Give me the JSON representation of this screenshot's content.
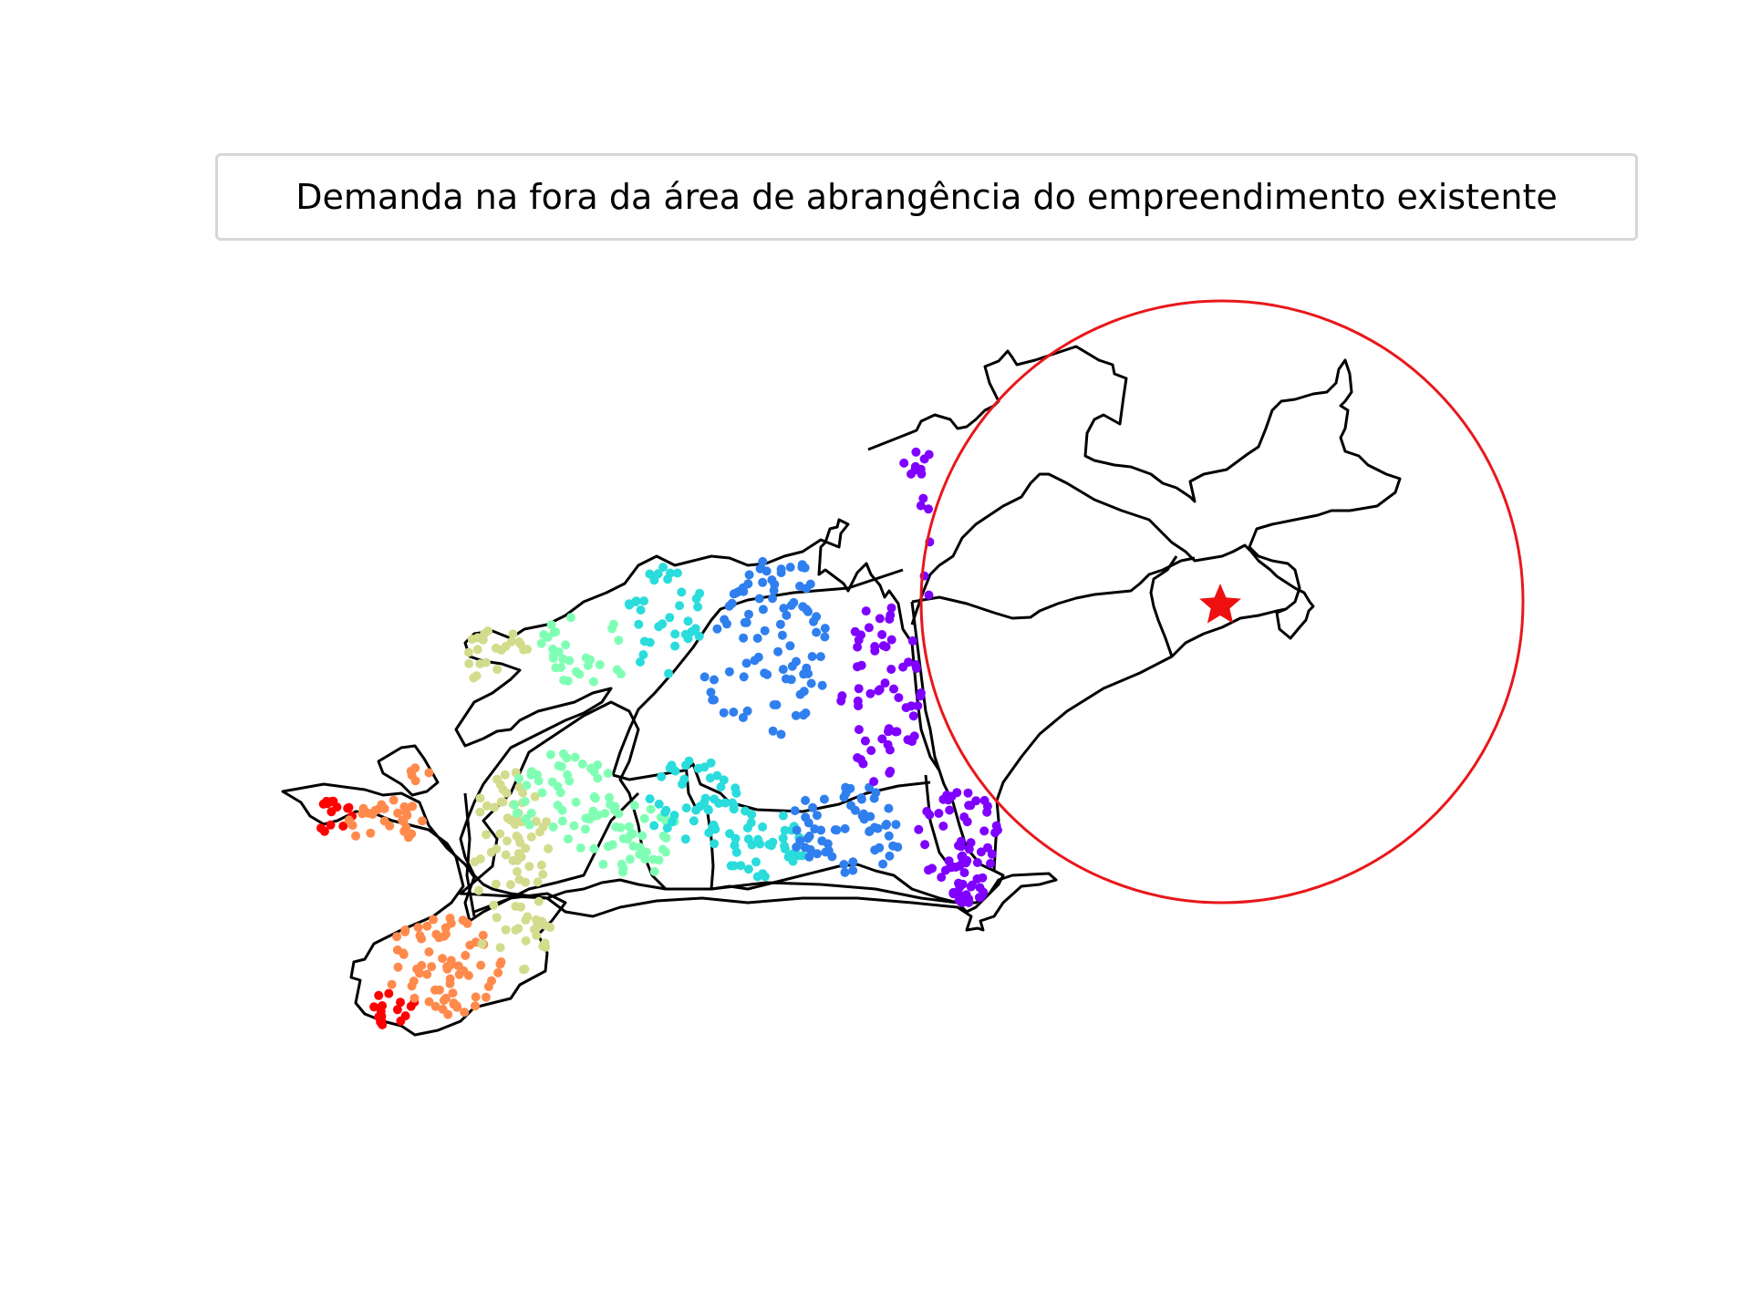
{
  "legend": {
    "label": "Demanda na fora da área de abrangência do empreendimento existente"
  },
  "colors": {
    "boundary": "#000000",
    "coverage_circle": "#e8171b",
    "facility_star": "#ee1010",
    "cluster_red": "#ff0000",
    "cluster_orange": "#ff8a4c",
    "cluster_olive": "#d2dc8c",
    "cluster_mint": "#80ffb4",
    "cluster_cyan": "#2adcdc",
    "cluster_blue": "#2f7fef",
    "cluster_violet": "#8000ff"
  },
  "icons": {
    "facility": "star-icon"
  }
}
